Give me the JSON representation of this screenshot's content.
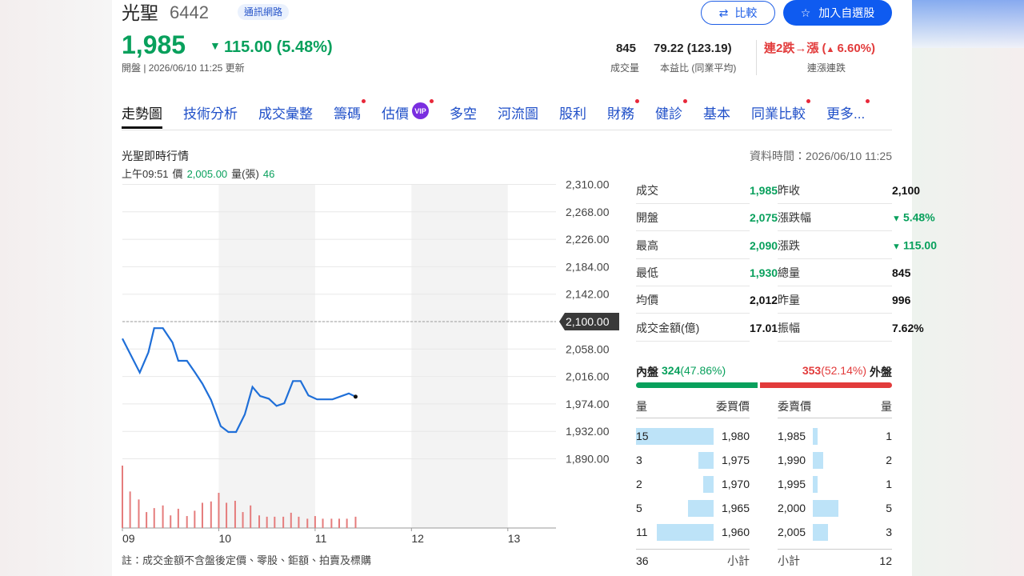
{
  "header": {
    "name": "光聖",
    "code": "6442",
    "industry": "通訊網路",
    "compare_button": "比較",
    "watchlist_button": "加入自選股",
    "price": "1,985",
    "change": "115.00 (5.48%)",
    "updated": "開盤 | 2026/06/10 11:25 更新",
    "volume": "845",
    "volume_label": "成交量",
    "pe": "79.22 (123.19)",
    "pe_label": "本益比 (同業平均)",
    "streak": "連2跌→漲 (",
    "streak_change": "6.60%)",
    "streak_label": "連漲連跌"
  },
  "tabs": [
    {
      "label": "走勢圖",
      "active": true
    },
    {
      "label": "技術分析"
    },
    {
      "label": "成交彙整"
    },
    {
      "label": "籌碼",
      "dot": true
    },
    {
      "label": "估價",
      "badge": "VIP",
      "dot": true
    },
    {
      "label": "多空"
    },
    {
      "label": "河流圖"
    },
    {
      "label": "股利"
    },
    {
      "label": "財務",
      "dot": true
    },
    {
      "label": "健診",
      "dot": true
    },
    {
      "label": "基本"
    },
    {
      "label": "同業比較",
      "dot": true
    },
    {
      "label": "更多...",
      "dot": true
    }
  ],
  "chart_data": {
    "type": "line",
    "title": "光聖即時行情",
    "data_time": "資料時間：2026/06/10 11:25",
    "cursor": {
      "time": "上午09:51",
      "price_label": "價",
      "price": "2,005.00",
      "volume_label": "量(張)",
      "volume": "46"
    },
    "x": [
      9,
      9.18,
      9.27,
      9.33,
      9.42,
      9.52,
      9.58,
      9.67,
      9.75,
      9.83,
      9.92,
      10.02,
      10.1,
      10.18,
      10.27,
      10.35,
      10.43,
      10.52,
      10.6,
      10.68,
      10.77,
      10.85,
      10.93,
      11.02,
      11.18,
      11.35,
      11.42
    ],
    "values": [
      2074,
      2022,
      2053,
      2090,
      2090,
      2068,
      2040,
      2040,
      2023,
      2005,
      1980,
      1940,
      1931,
      1931,
      1958,
      2000,
      1986,
      1982,
      1971,
      1975,
      2009,
      2009,
      1987,
      1981,
      1981,
      1990,
      1985
    ],
    "color": "#1f6fd8",
    "volume": {
      "x": [
        9,
        9.08,
        9.17,
        9.25,
        9.33,
        9.42,
        9.5,
        9.58,
        9.67,
        9.75,
        9.83,
        9.92,
        10,
        10.08,
        10.17,
        10.25,
        10.33,
        10.42,
        10.5,
        10.58,
        10.67,
        10.75,
        10.83,
        10.92,
        11,
        11.08,
        11.17,
        11.25,
        11.33,
        11.42
      ],
      "values": [
        94,
        55,
        43,
        24,
        30,
        34,
        19,
        29,
        18,
        26,
        38,
        40,
        53,
        38,
        41,
        24,
        34,
        19,
        17,
        17,
        17,
        23,
        17,
        14,
        18,
        14,
        14,
        14,
        14,
        17
      ],
      "color": "#e57c7c"
    },
    "xlim": [
      9,
      13.5
    ],
    "xticks": [
      {
        "value": 9,
        "label": "09"
      },
      10,
      11,
      12,
      13
    ],
    "ylim": [
      1890,
      2310
    ],
    "yticks": [
      {
        "value": 2310,
        "label": "2,310.00"
      },
      {
        "value": 2268,
        "label": "2,268.00"
      },
      {
        "value": 2226,
        "label": "2,226.00"
      },
      {
        "value": 2184,
        "label": "2,184.00"
      },
      {
        "value": 2142,
        "label": "2,142.00"
      },
      {
        "value": 2100,
        "label": "2,100.00"
      },
      {
        "value": 2058,
        "label": "2,058.00"
      },
      {
        "value": 2016,
        "label": "2,016.00"
      },
      {
        "value": 1974,
        "label": "1,974.00"
      },
      {
        "value": 1932,
        "label": "1,932.00"
      },
      {
        "value": 1890,
        "label": "1,890.00"
      }
    ],
    "reference_line": 2100,
    "grid": true
  },
  "quote_table": {
    "rows": [
      [
        {
          "label": "成交",
          "value": "1,985",
          "tone": "down"
        },
        {
          "label": "昨收",
          "value": "2,100"
        }
      ],
      [
        {
          "label": "開盤",
          "value": "2,075",
          "tone": "down"
        },
        {
          "label": "漲跌幅",
          "value": "5.48%",
          "tone": "down",
          "arrow": true
        }
      ],
      [
        {
          "label": "最高",
          "value": "2,090",
          "tone": "down"
        },
        {
          "label": "漲跌",
          "value": "115.00",
          "tone": "down",
          "arrow": true
        }
      ],
      [
        {
          "label": "最低",
          "value": "1,930",
          "tone": "down"
        },
        {
          "label": "總量",
          "value": "845"
        }
      ],
      [
        {
          "label": "均價",
          "value": "2,012"
        },
        {
          "label": "昨量",
          "value": "996"
        }
      ],
      [
        {
          "label": "成交金額(億)",
          "value": "17.01"
        },
        {
          "label": "振幅",
          "value": "7.62%"
        }
      ]
    ]
  },
  "order_flow": {
    "inner_label": "內盤",
    "inner": "324",
    "inner_pct": "(47.86%)",
    "outer": "353",
    "outer_pct": "(52.14%)",
    "outer_label": "外盤",
    "inner_share": 47.86
  },
  "order_book": {
    "headers": [
      "量",
      "委買價",
      "委賣價",
      "量"
    ],
    "bids": [
      {
        "qty": 15,
        "price": "1,980"
      },
      {
        "qty": 3,
        "price": "1,975"
      },
      {
        "qty": 2,
        "price": "1,970"
      },
      {
        "qty": 5,
        "price": "1,965"
      },
      {
        "qty": 11,
        "price": "1,960"
      }
    ],
    "asks": [
      {
        "qty": 1,
        "price": "1,985"
      },
      {
        "qty": 2,
        "price": "1,990"
      },
      {
        "qty": 1,
        "price": "1,995"
      },
      {
        "qty": 5,
        "price": "2,000"
      },
      {
        "qty": 3,
        "price": "2,005"
      }
    ],
    "bid_total": 36,
    "subtotal_label": "小計",
    "ask_total": 12
  },
  "note": "註：成交金額不含盤後定價、零股、鉅額、拍賣及標購"
}
